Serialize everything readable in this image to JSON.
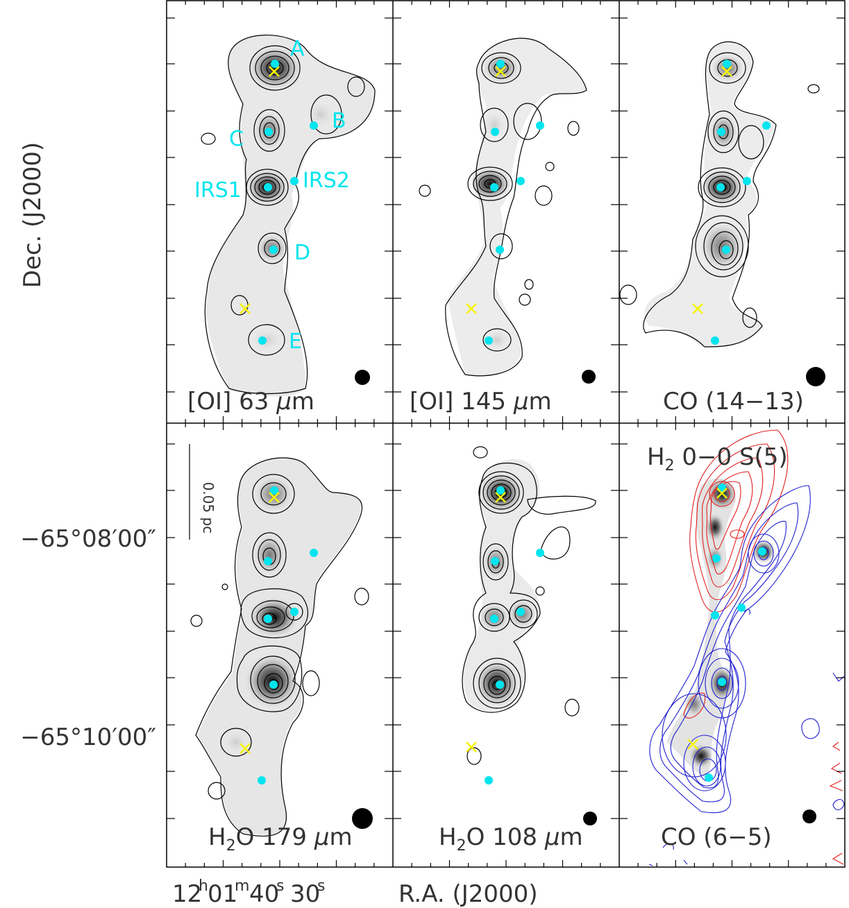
{
  "figure": {
    "y_axis_label": "Dec. (J2000)",
    "x_axis_label": "R.A. (J2000)",
    "dec_ticks": [
      "−65°08′00″",
      "−65°10′00″"
    ],
    "ra_tick_main": "12",
    "ra_h": "h",
    "ra_min": "01",
    "ra_m": "m",
    "ra_sec": "40",
    "ra_s": "s",
    "ra_tick2": "30",
    "ra_s2": "s",
    "scale_bar_label": "0.05 pc"
  },
  "panels": [
    {
      "id": "oi63",
      "label_pre": "[OI] 63 ",
      "label_mu": "μ",
      "label_post": "m"
    },
    {
      "id": "oi145",
      "label_pre": "[OI] 145 ",
      "label_mu": "μ",
      "label_post": "m"
    },
    {
      "id": "co1413",
      "label": "CO (14−13)"
    },
    {
      "id": "h2o179",
      "label_pre": "H",
      "label_sub": "2",
      "label_mid": "O 179 ",
      "label_mu": "μ",
      "label_post": "m"
    },
    {
      "id": "h2o108",
      "label_pre": "H",
      "label_sub": "2",
      "label_mid": "O 108 ",
      "label_mu": "μ",
      "label_post": "m"
    },
    {
      "id": "h2co",
      "label_pre": "H",
      "label_sub": "2",
      "label_post": " 0−0 S(5)",
      "label2": "CO (6−5)"
    }
  ],
  "sources": {
    "A": "A",
    "B": "B",
    "C": "C",
    "IRS1": "IRS1",
    "IRS2": "IRS2",
    "D": "D",
    "E": "E"
  },
  "colors": {
    "source_marker": "#00e5ee",
    "cross_marker": "#f5f500",
    "redshifted_contours": "#e02020",
    "blueshifted_contours": "#2020d0"
  }
}
